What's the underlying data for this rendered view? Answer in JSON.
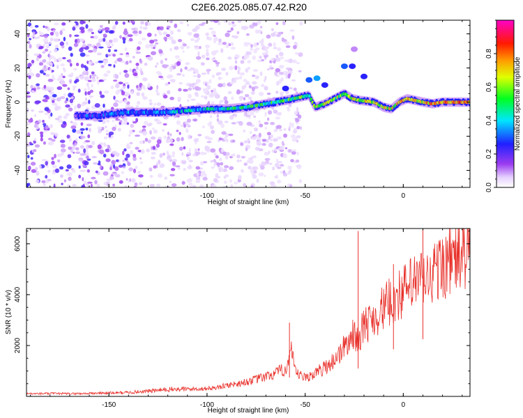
{
  "title": "C2E6.2025.085.07.42.R20",
  "chart_data": [
    {
      "type": "heatmap",
      "xlabel": "Height of straight line (km)",
      "ylabel": "Frequency (Hz)",
      "xlim": [
        -192,
        34
      ],
      "ylim": [
        -50,
        48
      ],
      "xticks": [
        -150,
        -100,
        -50,
        0
      ],
      "yticks": [
        -40,
        -20,
        0,
        20,
        40
      ],
      "colorbar": {
        "label": "Normalized spectral amplitude",
        "range": [
          0,
          1
        ],
        "ticks": [
          0.0,
          0.2,
          0.4,
          0.6,
          0.8
        ],
        "tick_labels": [
          "0.0",
          "0.2",
          "0.4",
          "0.6",
          "0.8"
        ],
        "colormap": "rainbow (white, violet, blue, cyan, green, yellow, orange, red, magenta)"
      },
      "ridge": {
        "description": "dominant frequency trace",
        "x": [
          -167,
          -155,
          -150,
          -140,
          -130,
          -120,
          -110,
          -100,
          -90,
          -80,
          -70,
          -60,
          -52,
          -48,
          -45,
          -40,
          -35,
          -30,
          -26,
          -22,
          -15,
          -10,
          -6,
          -2,
          2,
          6,
          10,
          15,
          20,
          25,
          30,
          34
        ],
        "y": [
          -8,
          -8,
          -7,
          -6,
          -6,
          -6,
          -5,
          -4,
          -4,
          -3,
          -1,
          1,
          3,
          4,
          -3,
          -1,
          2,
          5,
          2,
          1,
          0,
          -3,
          -4,
          0,
          2,
          1,
          0,
          -1,
          0,
          0,
          0,
          0
        ]
      }
    },
    {
      "type": "line",
      "xlabel": "Height of straight line (km)",
      "ylabel": "SNR (10 * v/v)",
      "xlim": [
        -192,
        34
      ],
      "ylim": [
        0,
        6600
      ],
      "xticks": [
        -150,
        -100,
        -50,
        0
      ],
      "yticks": [
        2000,
        4000,
        6000
      ],
      "series": [
        {
          "color": "#e8302a",
          "x": [
            -192,
            -180,
            -170,
            -160,
            -150,
            -140,
            -130,
            -120,
            -110,
            -100,
            -95,
            -90,
            -85,
            -80,
            -75,
            -70,
            -65,
            -60,
            -57,
            -55,
            -50,
            -45,
            -40,
            -35,
            -30,
            -28,
            -25,
            -23,
            -20,
            -15,
            -10,
            -5,
            0,
            5,
            10,
            12,
            15,
            20,
            25,
            30,
            34
          ],
          "y": [
            100,
            110,
            100,
            115,
            130,
            150,
            200,
            260,
            280,
            300,
            340,
            420,
            480,
            550,
            650,
            750,
            880,
            1050,
            1700,
            900,
            700,
            880,
            1100,
            1400,
            1900,
            2100,
            2400,
            2200,
            2700,
            3000,
            3400,
            3700,
            4000,
            4300,
            4500,
            4400,
            4700,
            5000,
            5200,
            5400,
            5500
          ]
        }
      ],
      "spikes": [
        {
          "x": -58,
          "y": 2900
        },
        {
          "x": -23,
          "y": 6500
        },
        {
          "x": -5,
          "y": 5200
        },
        {
          "x": 10,
          "y": 6600
        }
      ]
    }
  ],
  "colors": {
    "line": "#e8302a",
    "axes": "#000000"
  }
}
